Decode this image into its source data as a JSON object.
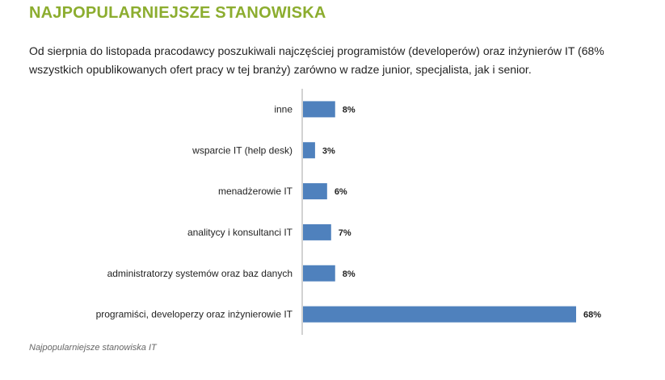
{
  "page": {
    "title": "NAJPOPULARNIEJSZE STANOWISKA",
    "intro": "Od sierpnia do listopada  pracodawcy poszukiwali najczęściej programistów (developerów) oraz inżynierów IT (68% wszystkich opublikowanych ofert pracy w tej branży) zarówno w radze junior, specjalista, jak i senior.",
    "caption": "Najpopularniejsze stanowiska IT"
  },
  "chart_data": {
    "type": "bar",
    "orientation": "horizontal",
    "categories": [
      "inne",
      "wsparcie IT (help desk)",
      "menadżerowie IT",
      "analitycy i konsultanci IT",
      "administratorzy systemów oraz baz danych",
      "programiści, developerzy oraz inżynierowie IT"
    ],
    "values": [
      8,
      3,
      6,
      7,
      8,
      68
    ],
    "value_labels": [
      "8%",
      "3%",
      "6%",
      "7%",
      "8%",
      "68%"
    ],
    "unit": "%",
    "bar_color": "#4f81bd",
    "xlim": [
      0,
      100
    ],
    "grid": false
  }
}
